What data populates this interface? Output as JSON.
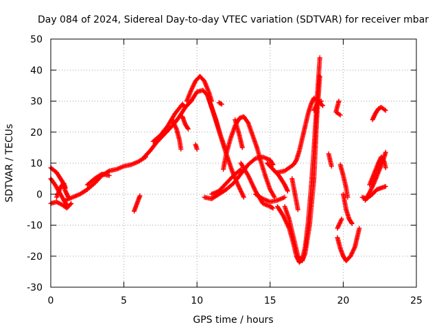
{
  "chart_data": {
    "type": "scatter",
    "title": "Day 084 of 2024, Sidereal Day-to-day VTEC variation (SDTVAR) for receiver mbar",
    "xlabel": "GPS time / hours",
    "ylabel": "SDTVAR / TECUs",
    "xlim": [
      0,
      25
    ],
    "ylim": [
      -30,
      50
    ],
    "xticks": [
      0,
      5,
      10,
      15,
      20,
      25
    ],
    "yticks": [
      -30,
      -20,
      -10,
      0,
      10,
      20,
      30,
      40,
      50
    ],
    "grid": true,
    "marker": "plus",
    "color": "#ff0000",
    "tracks": [
      [
        [
          0.0,
          8.5
        ],
        [
          0.4,
          7.0
        ],
        [
          0.8,
          4.0
        ],
        [
          1.0,
          1.0
        ],
        [
          1.2,
          -1.0
        ]
      ],
      [
        [
          0.0,
          5.0
        ],
        [
          0.3,
          3.0
        ],
        [
          0.6,
          0.5
        ],
        [
          0.9,
          -2.0
        ],
        [
          1.1,
          -3.5
        ]
      ],
      [
        [
          0.0,
          -3.0
        ],
        [
          0.4,
          -2.5
        ],
        [
          0.8,
          -3.5
        ],
        [
          1.1,
          -4.5
        ],
        [
          1.4,
          -3.0
        ]
      ],
      [
        [
          0.4,
          -1.0
        ],
        [
          0.7,
          2.5
        ],
        [
          0.9,
          3.5
        ],
        [
          1.0,
          2.0
        ]
      ],
      [
        [
          1.0,
          -2.0
        ],
        [
          1.5,
          -1.0
        ],
        [
          2.0,
          0.0
        ],
        [
          2.5,
          1.5
        ],
        [
          3.0,
          3.5
        ],
        [
          3.5,
          6.0
        ],
        [
          4.0,
          7.5
        ],
        [
          4.5,
          8.0
        ],
        [
          5.0,
          9.0
        ],
        [
          5.5,
          9.5
        ],
        [
          6.0,
          10.5
        ],
        [
          6.5,
          12.0
        ]
      ],
      [
        [
          2.5,
          3.0
        ],
        [
          3.0,
          5.0
        ],
        [
          3.5,
          6.5
        ],
        [
          4.0,
          6.0
        ]
      ],
      [
        [
          5.7,
          -5.5
        ],
        [
          5.9,
          -3.0
        ],
        [
          6.1,
          -0.5
        ]
      ],
      [
        [
          6.4,
          12.0
        ],
        [
          6.8,
          14.0
        ],
        [
          7.2,
          16.5
        ],
        [
          7.6,
          18.5
        ],
        [
          8.0,
          20.5
        ],
        [
          8.4,
          22.5
        ],
        [
          8.8,
          25.0
        ],
        [
          9.2,
          28.0
        ],
        [
          9.6,
          30.0
        ],
        [
          10.0,
          33.0
        ],
        [
          10.4,
          33.5
        ],
        [
          10.7,
          32.0
        ]
      ],
      [
        [
          7.0,
          17.0
        ],
        [
          7.5,
          19.0
        ],
        [
          8.0,
          22.0
        ],
        [
          8.5,
          26.0
        ],
        [
          9.0,
          29.0
        ],
        [
          9.2,
          28.0
        ]
      ],
      [
        [
          8.3,
          24.0
        ],
        [
          8.6,
          21.0
        ],
        [
          8.8,
          17.5
        ],
        [
          8.9,
          14.5
        ]
      ],
      [
        [
          9.3,
          30.0
        ],
        [
          9.6,
          33.5
        ],
        [
          9.9,
          36.5
        ],
        [
          10.2,
          38.0
        ],
        [
          10.5,
          36.5
        ],
        [
          10.8,
          33.0
        ],
        [
          11.0,
          30.0
        ]
      ],
      [
        [
          9.0,
          25.0
        ],
        [
          9.2,
          22.5
        ],
        [
          9.4,
          21.0
        ]
      ],
      [
        [
          9.9,
          16.0
        ],
        [
          10.0,
          14.5
        ]
      ],
      [
        [
          10.7,
          32.0
        ],
        [
          11.0,
          28.0
        ],
        [
          11.3,
          24.0
        ],
        [
          11.6,
          19.0
        ],
        [
          11.9,
          15.0
        ]
      ],
      [
        [
          10.8,
          31.0
        ],
        [
          11.2,
          25.0
        ],
        [
          11.6,
          19.0
        ],
        [
          12.0,
          13.0
        ],
        [
          12.4,
          7.5
        ],
        [
          12.8,
          3.0
        ],
        [
          13.2,
          -1.0
        ]
      ],
      [
        [
          11.5,
          29.5
        ],
        [
          11.7,
          29.0
        ]
      ],
      [
        [
          10.5,
          -1.0
        ],
        [
          11.0,
          -1.5
        ],
        [
          11.5,
          0.0
        ],
        [
          12.0,
          1.5
        ],
        [
          12.5,
          3.5
        ],
        [
          13.0,
          6.5
        ],
        [
          13.5,
          9.5
        ],
        [
          14.0,
          11.5
        ],
        [
          14.5,
          12.0
        ],
        [
          15.0,
          11.0
        ],
        [
          15.2,
          9.5
        ]
      ],
      [
        [
          11.0,
          0.0
        ],
        [
          11.5,
          1.0
        ],
        [
          12.0,
          3.5
        ],
        [
          12.5,
          6.0
        ],
        [
          13.0,
          8.0
        ]
      ],
      [
        [
          11.8,
          8.0
        ],
        [
          12.0,
          13.0
        ],
        [
          12.3,
          18.0
        ],
        [
          12.6,
          22.0
        ],
        [
          12.9,
          24.5
        ],
        [
          13.2,
          25.0
        ],
        [
          13.5,
          23.0
        ],
        [
          13.8,
          19.0
        ],
        [
          14.1,
          15.0
        ],
        [
          14.4,
          10.0
        ],
        [
          14.7,
          5.5
        ],
        [
          15.0,
          1.5
        ],
        [
          15.3,
          -1.0
        ]
      ],
      [
        [
          12.6,
          24.0
        ],
        [
          12.9,
          19.0
        ],
        [
          13.1,
          15.0
        ]
      ],
      [
        [
          13.0,
          10.0
        ],
        [
          13.5,
          6.0
        ],
        [
          14.0,
          1.0
        ],
        [
          14.5,
          -3.0
        ],
        [
          15.0,
          -4.0
        ],
        [
          15.2,
          -4.5
        ]
      ],
      [
        [
          14.0,
          0.0
        ],
        [
          14.5,
          -1.5
        ],
        [
          15.0,
          -2.5
        ],
        [
          15.5,
          -2.0
        ],
        [
          16.0,
          -1.0
        ]
      ],
      [
        [
          14.8,
          10.0
        ],
        [
          15.2,
          8.0
        ],
        [
          15.6,
          6.0
        ],
        [
          16.0,
          3.0
        ],
        [
          16.2,
          1.0
        ]
      ],
      [
        [
          15.5,
          7.0
        ],
        [
          16.0,
          7.5
        ],
        [
          16.3,
          8.5
        ],
        [
          16.6,
          9.5
        ],
        [
          16.8,
          11.0
        ],
        [
          17.0,
          14.0
        ],
        [
          17.2,
          18.0
        ],
        [
          17.4,
          22.0
        ],
        [
          17.6,
          26.0
        ],
        [
          17.8,
          29.0
        ],
        [
          18.0,
          31.0
        ],
        [
          18.3,
          30.0
        ],
        [
          18.6,
          28.5
        ]
      ],
      [
        [
          15.5,
          -4.0
        ],
        [
          15.9,
          -7.0
        ],
        [
          16.3,
          -11.0
        ],
        [
          16.6,
          -16.0
        ],
        [
          16.8,
          -20.0
        ],
        [
          17.0,
          -22.0
        ],
        [
          17.2,
          -21.0
        ],
        [
          17.4,
          -17.0
        ],
        [
          17.6,
          -9.0
        ],
        [
          17.8,
          2.0
        ],
        [
          18.0,
          15.0
        ],
        [
          18.2,
          30.0
        ],
        [
          18.4,
          44.0
        ]
      ],
      [
        [
          16.0,
          -4.0
        ],
        [
          16.3,
          -8.0
        ],
        [
          16.6,
          -14.0
        ],
        [
          16.9,
          -20.0
        ],
        [
          17.2,
          -21.5
        ],
        [
          17.4,
          -19.0
        ],
        [
          17.7,
          -10.0
        ],
        [
          18.0,
          5.0
        ],
        [
          18.2,
          25.0
        ],
        [
          18.4,
          38.0
        ]
      ],
      [
        [
          16.5,
          5.0
        ],
        [
          16.7,
          0.0
        ],
        [
          16.9,
          -5.0
        ]
      ],
      [
        [
          18.0,
          27.0
        ],
        [
          18.2,
          29.0
        ],
        [
          18.5,
          30.0
        ]
      ],
      [
        [
          19.0,
          13.0
        ],
        [
          19.2,
          9.0
        ]
      ],
      [
        [
          19.7,
          30.0
        ],
        [
          19.5,
          26.5
        ],
        [
          19.8,
          25.5
        ]
      ],
      [
        [
          19.8,
          9.5
        ],
        [
          20.0,
          6.0
        ],
        [
          20.2,
          2.0
        ],
        [
          20.3,
          -1.0
        ]
      ],
      [
        [
          20.0,
          0.0
        ],
        [
          20.2,
          -5.0
        ],
        [
          20.4,
          -8.0
        ],
        [
          20.6,
          -9.5
        ]
      ],
      [
        [
          19.6,
          -11.0
        ],
        [
          19.9,
          -8.0
        ]
      ],
      [
        [
          19.6,
          -14.0
        ],
        [
          19.8,
          -17.5
        ],
        [
          20.0,
          -20.0
        ],
        [
          20.2,
          -21.5
        ],
        [
          20.5,
          -20.0
        ],
        [
          20.8,
          -17.0
        ],
        [
          21.0,
          -13.0
        ],
        [
          21.1,
          -11.0
        ]
      ],
      [
        [
          21.3,
          -1.0
        ],
        [
          21.6,
          -1.5
        ],
        [
          22.0,
          0.0
        ],
        [
          22.3,
          1.5
        ],
        [
          22.6,
          2.0
        ],
        [
          22.9,
          2.5
        ]
      ],
      [
        [
          21.5,
          -2.0
        ],
        [
          21.8,
          0.5
        ],
        [
          22.1,
          3.5
        ],
        [
          22.4,
          7.0
        ],
        [
          22.7,
          10.5
        ],
        [
          22.9,
          13.5
        ]
      ],
      [
        [
          21.8,
          3.0
        ],
        [
          22.1,
          6.5
        ],
        [
          22.4,
          10.0
        ],
        [
          22.6,
          12.0
        ],
        [
          22.8,
          10.5
        ],
        [
          22.9,
          8.5
        ]
      ],
      [
        [
          22.0,
          24.0
        ],
        [
          22.2,
          26.0
        ],
        [
          22.4,
          27.5
        ],
        [
          22.6,
          28.0
        ],
        [
          22.9,
          27.0
        ]
      ]
    ]
  }
}
